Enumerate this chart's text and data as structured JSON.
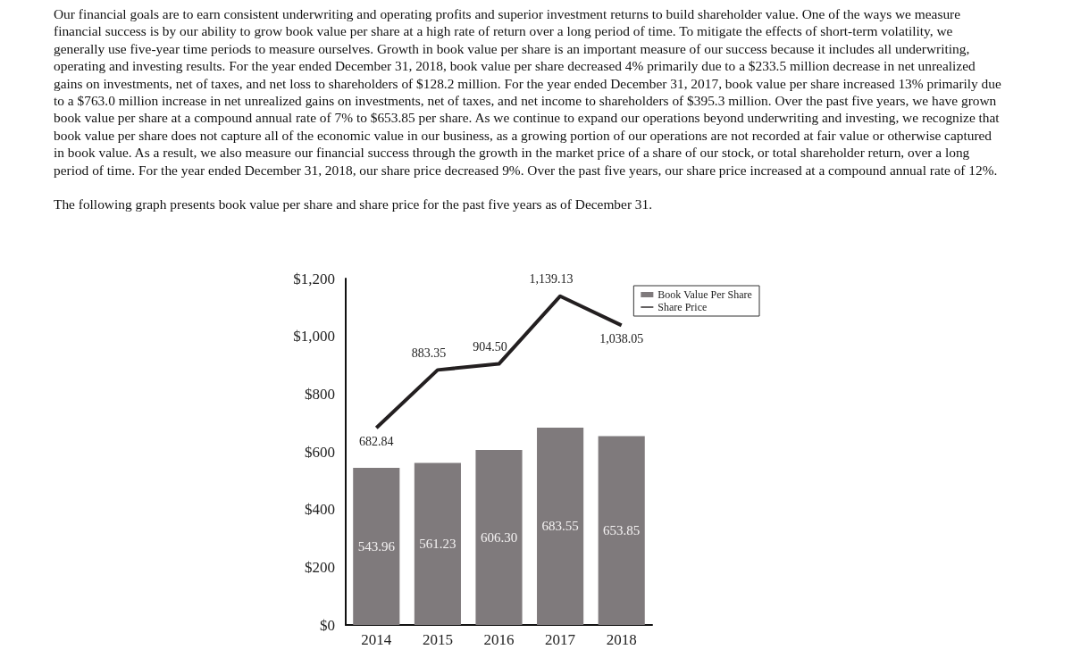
{
  "chart_data": {
    "type": "bar",
    "annotations": [
      "Our financial goals are to earn consistent underwriting and operating profits and superior investment returns to build shareholder value. One of the ways we measure financial success is by our ability to grow book value per share at a high rate of return over a long period of time. To mitigate the effects of short-term volatility, we generally use five-year time periods to measure ourselves. Growth in book value per share is an important measure of our success because it includes all underwriting, operating and investing results. For the year ended December 31, 2018, book value per share decreased 4% primarily due to a $233.5 million decrease in net unrealized gains on investments, net of taxes, and net loss to shareholders of $128.2 million. For the year ended December 31, 2017, book value per share increased 13% primarily due to a $763.0 million increase in net unrealized gains on investments, net of taxes, and net income to shareholders of $395.3 million. Over the past five years, we have grown book value per share at a compound annual rate of 7% to $653.85 per share. As we continue to expand our operations beyond underwriting and investing, we recognize that book value per share does not capture all of the economic value in our business, as a growing portion of our operations are not recorded at fair value or otherwise captured in book value. As a result, we also measure our financial success through the growth in the market price of a share of our stock, or total shareholder return, over a long period of time. For the year ended December 31, 2018, our share price decreased 9%. Over the past five years, our share price increased at a compound annual rate of 12%.",
      "The following graph presents book value per share and share price for the past five years as of December 31."
    ],
    "categories": [
      "2014",
      "2015",
      "2016",
      "2017",
      "2018"
    ],
    "series": [
      {
        "name": "Book Value Per Share",
        "color": "#7f7a7c",
        "values": [
          543.96,
          561.23,
          606.3,
          683.55,
          653.85
        ],
        "value_labels": [
          "543.96",
          "561.23",
          "606.30",
          "683.55",
          "653.85"
        ]
      },
      {
        "name": "Share Price",
        "type": "line",
        "color": "#231f20",
        "values": [
          682.84,
          883.35,
          904.5,
          1139.13,
          1038.05
        ],
        "value_labels": [
          "682.84",
          "883.35",
          "904.50",
          "1,139.13",
          "1,038.05"
        ]
      }
    ],
    "ylim": [
      0,
      1200
    ],
    "yticks": [
      {
        "value": 0,
        "label": "$0"
      },
      {
        "value": 200,
        "label": "$200"
      },
      {
        "value": 400,
        "label": "$400"
      },
      {
        "value": 600,
        "label": "$600"
      },
      {
        "value": 800,
        "label": "$800"
      },
      {
        "value": 1000,
        "label": "$1,000"
      },
      {
        "value": 1200,
        "label": "$1,200"
      }
    ],
    "data_labels": true,
    "grid": false,
    "legend": "top right",
    "marker": "none"
  }
}
